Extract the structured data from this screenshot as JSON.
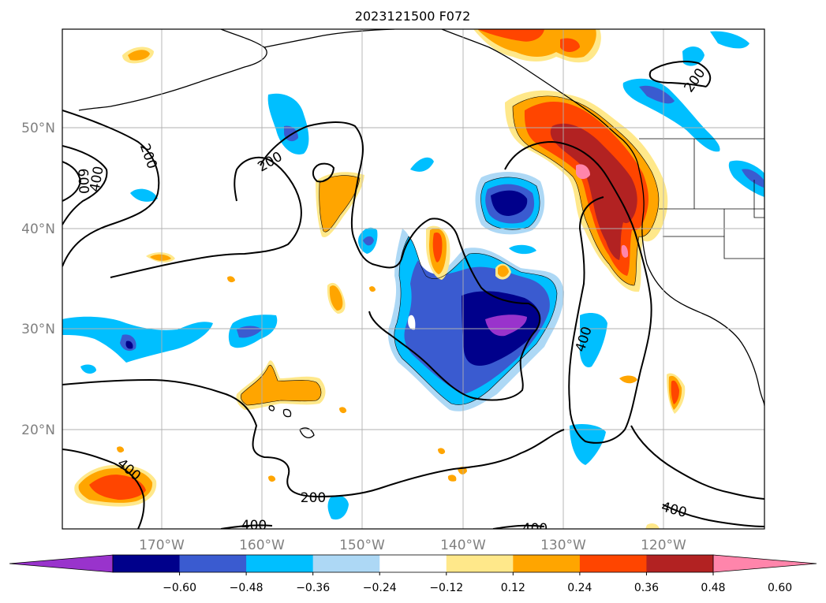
{
  "map": {
    "title": "2023121500 F072",
    "lat_labels": [
      "50°N",
      "40°N",
      "30°N",
      "20°N"
    ],
    "lon_labels": [
      "170°W",
      "160°W",
      "150°W",
      "140°W",
      "130°W",
      "120°W"
    ],
    "contour_labels": [
      "600",
      "400",
      "200",
      "200",
      "200",
      "400",
      "400",
      "200",
      "400",
      "400",
      "400"
    ],
    "colorbar": {
      "ticks": [
        "−0.60",
        "−0.48",
        "−0.36",
        "−0.24",
        "−0.12",
        "0.12",
        "0.24",
        "0.36",
        "0.48",
        "0.60"
      ],
      "colors": [
        "#9933cc",
        "#00008b",
        "#3a5bd0",
        "#00bfff",
        "#add8f5",
        "#ffffff",
        "#ffe88a",
        "#ffa500",
        "#ff4500",
        "#b22222",
        "#ff85ab"
      ]
    },
    "colors": {
      "grid": "#b0b0b0",
      "axis_label": "#808080",
      "contour": "#000000"
    }
  }
}
